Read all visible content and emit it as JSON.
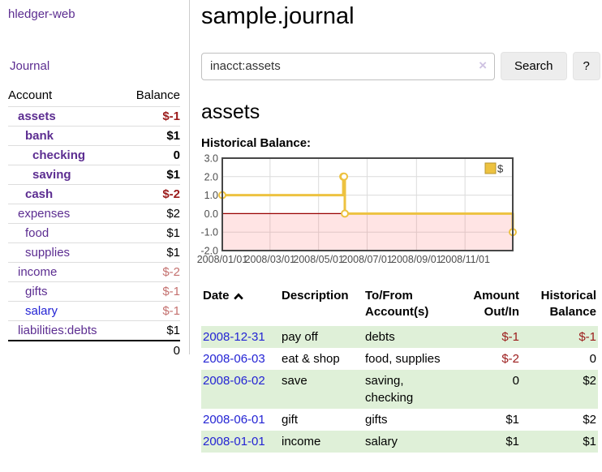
{
  "sidebar": {
    "brand": "hledger-web",
    "journal_link": "Journal",
    "accounts_table": {
      "account_header": "Account",
      "balance_header": "Balance",
      "rows": [
        {
          "name": "assets",
          "depth": 1,
          "bold": true,
          "balance": "$-1",
          "balance_style": "neg-strong",
          "link_style": "purple"
        },
        {
          "name": "bank",
          "depth": 2,
          "bold": true,
          "balance": "$1",
          "balance_style": "pos",
          "link_style": "purple"
        },
        {
          "name": "checking",
          "depth": 3,
          "bold": true,
          "balance": "0",
          "balance_style": "pos",
          "link_style": "purple"
        },
        {
          "name": "saving",
          "depth": 3,
          "bold": true,
          "balance": "$1",
          "balance_style": "pos",
          "link_style": "purple"
        },
        {
          "name": "cash",
          "depth": 2,
          "bold": true,
          "balance": "$-2",
          "balance_style": "neg-strong",
          "link_style": "purple"
        },
        {
          "name": "expenses",
          "depth": 1,
          "bold": false,
          "balance": "$2",
          "balance_style": "pos",
          "link_style": "purple"
        },
        {
          "name": "food",
          "depth": 2,
          "bold": false,
          "balance": "$1",
          "balance_style": "pos",
          "link_style": "purple"
        },
        {
          "name": "supplies",
          "depth": 2,
          "bold": false,
          "balance": "$1",
          "balance_style": "pos",
          "link_style": "purple"
        },
        {
          "name": "income",
          "depth": 1,
          "bold": false,
          "balance": "$-2",
          "balance_style": "neg-soft",
          "link_style": "purple"
        },
        {
          "name": "gifts",
          "depth": 2,
          "bold": false,
          "balance": "$-1",
          "balance_style": "neg-soft",
          "link_style": "purple"
        },
        {
          "name": "salary",
          "depth": 2,
          "bold": false,
          "balance": "$-1",
          "balance_style": "neg-soft",
          "link_style": "blue"
        },
        {
          "name": "liabilities:debts",
          "depth": 1,
          "bold": false,
          "balance": "$1",
          "balance_style": "pos",
          "link_style": "purple"
        }
      ],
      "total": "0"
    }
  },
  "header": {
    "title": "sample.journal"
  },
  "search": {
    "value": "inacct:assets",
    "clear_icon": "×",
    "search_button": "Search",
    "help_button": "?"
  },
  "account_page": {
    "heading": "assets",
    "chart_label": "Historical Balance:"
  },
  "chart_data": {
    "type": "line",
    "step": true,
    "title": "Historical Balance:",
    "series": [
      {
        "name": "$",
        "color": "#edc240",
        "points": [
          [
            "2008-01-01",
            1
          ],
          [
            "2008-06-01",
            2
          ],
          [
            "2008-06-02",
            2
          ],
          [
            "2008-06-03",
            0
          ],
          [
            "2008-12-31",
            -1
          ]
        ]
      }
    ],
    "x_range": [
      "2008-01-01",
      "2008-12-31"
    ],
    "ylim": [
      -2.0,
      3.0
    ],
    "yticks": [
      "3.0",
      "2.0",
      "1.0",
      "0.0",
      "-1.0",
      "-2.0"
    ],
    "xticks": [
      "2008/01/01",
      "2008/03/01",
      "2008/05/01",
      "2008/07/01",
      "2008/09/01",
      "2008/11/01"
    ],
    "legend": {
      "label": "$",
      "position": "top-right"
    },
    "grid": true,
    "colors": {
      "line": "#edc240",
      "marker_fill": "#ffffff",
      "negative_region": "rgba(255,90,90,0.16)",
      "zero_line": "#990000",
      "gridline": "#dcdcdc",
      "plot_border": "#474747",
      "tick_text": "#4d4d4d"
    }
  },
  "register_table": {
    "headers": {
      "date": "Date",
      "description": "Description",
      "accounts": "To/From Account(s)",
      "amount": "Amount Out/In",
      "balance": "Historical Balance"
    },
    "rows": [
      {
        "date": "2008-12-31",
        "description": "pay off",
        "accounts": "debts",
        "amount": "$-1",
        "amount_style": "neg-strong",
        "balance": "$-1",
        "balance_style": "neg-strong",
        "highlight": true
      },
      {
        "date": "2008-06-03",
        "description": "eat & shop",
        "accounts": "food, supplies",
        "amount": "$-2",
        "amount_style": "neg-strong",
        "balance": "0",
        "balance_style": "pos",
        "highlight": false
      },
      {
        "date": "2008-06-02",
        "description": "save",
        "accounts": "saving, checking",
        "amount": "0",
        "amount_style": "pos",
        "balance": "$2",
        "balance_style": "pos",
        "highlight": true
      },
      {
        "date": "2008-06-01",
        "description": "gift",
        "accounts": "gifts",
        "amount": "$1",
        "amount_style": "pos",
        "balance": "$2",
        "balance_style": "pos",
        "highlight": false
      },
      {
        "date": "2008-01-01",
        "description": "income",
        "accounts": "salary",
        "amount": "$1",
        "amount_style": "pos",
        "balance": "$1",
        "balance_style": "pos",
        "highlight": true
      }
    ]
  },
  "colors": {
    "accent_purple": "#5c2d91",
    "link_blue": "#2323d4",
    "negative_strong": "#9b1a1a",
    "negative_soft": "#c4716f",
    "row_highlight_green": "#dff0d8"
  }
}
